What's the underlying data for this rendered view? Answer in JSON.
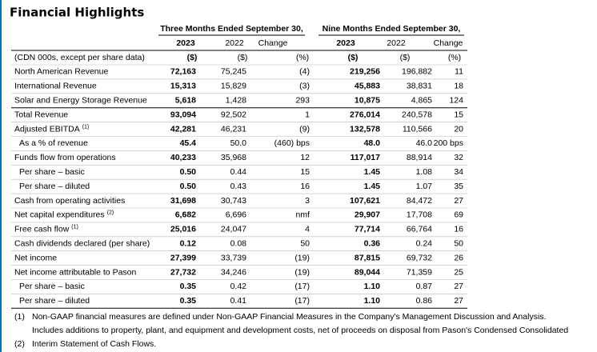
{
  "header": {
    "title": "Financial Highlights"
  },
  "table": {
    "groups": [
      {
        "label": "Three Months Ended September 30,",
        "columns": [
          "2023",
          "2022",
          "Change"
        ]
      },
      {
        "label": "Nine Months Ended September 30,",
        "columns": [
          "2023",
          "2022",
          "Change"
        ]
      }
    ],
    "units_row": {
      "label": "(CDN 000s, except per share data)",
      "cells": [
        "($)",
        "($)",
        "(%)",
        "($)",
        "($)",
        "(%)"
      ]
    },
    "rows": [
      {
        "label": "North American Revenue",
        "cells": [
          "72,163",
          "75,245",
          "(4)",
          "219,256",
          "196,882",
          "11"
        ]
      },
      {
        "label": "International Revenue",
        "cells": [
          "15,313",
          "15,829",
          "(3)",
          "45,883",
          "38,831",
          "18"
        ]
      },
      {
        "label": "Solar and Energy Storage Revenue",
        "cells": [
          "5,618",
          "1,428",
          "293",
          "10,875",
          "4,865",
          "124"
        ]
      },
      {
        "label": "Total Revenue",
        "cells": [
          "93,094",
          "92,502",
          "1",
          "276,014",
          "240,578",
          "15"
        ]
      },
      {
        "label": "Adjusted EBITDA",
        "note": "(1)",
        "cells": [
          "42,281",
          "46,231",
          "(9)",
          "132,578",
          "110,566",
          "20"
        ]
      },
      {
        "label": "As a % of revenue",
        "indent": true,
        "cells": [
          "45.4",
          "50.0",
          "(460) bps",
          "48.0",
          "46.0",
          "200 bps"
        ]
      },
      {
        "label": "Funds flow from operations",
        "cells": [
          "40,233",
          "35,968",
          "12",
          "117,017",
          "88,914",
          "32"
        ]
      },
      {
        "label": "Per share – basic",
        "indent": true,
        "cells": [
          "0.50",
          "0.44",
          "15",
          "1.45",
          "1.08",
          "34"
        ]
      },
      {
        "label": "Per share – diluted",
        "indent": true,
        "cells": [
          "0.50",
          "0.43",
          "16",
          "1.45",
          "1.07",
          "35"
        ]
      },
      {
        "label": "Cash from operating activities",
        "cells": [
          "31,698",
          "30,743",
          "3",
          "107,621",
          "84,472",
          "27"
        ]
      },
      {
        "label": "Net capital expenditures",
        "note": "(2)",
        "cells": [
          "6,682",
          "6,696",
          "nmf",
          "29,907",
          "17,708",
          "69"
        ]
      },
      {
        "label": "Free cash flow",
        "note": "(1)",
        "cells": [
          "25,016",
          "24,047",
          "4",
          "77,714",
          "66,764",
          "16"
        ]
      },
      {
        "label": "Cash dividends declared (per share)",
        "cells": [
          "0.12",
          "0.08",
          "50",
          "0.36",
          "0.24",
          "50"
        ]
      },
      {
        "label": "Net income",
        "cells": [
          "27,399",
          "33,739",
          "(19)",
          "87,815",
          "69,732",
          "26"
        ]
      },
      {
        "label": "Net income attributable to Pason",
        "cells": [
          "27,732",
          "34,246",
          "(19)",
          "89,044",
          "71,359",
          "25"
        ]
      },
      {
        "label": "Per share – basic",
        "indent": true,
        "cells": [
          "0.35",
          "0.42",
          "(17)",
          "1.10",
          "0.87",
          "27"
        ]
      },
      {
        "label": "Per share – diluted",
        "indent": true,
        "cells": [
          "0.35",
          "0.41",
          "(17)",
          "1.10",
          "0.86",
          "27"
        ]
      }
    ]
  },
  "footnotes": [
    {
      "marker": "(1)",
      "text": "Non-GAAP financial measures are defined under Non-GAAP Financial Measures in the Company's Management Discussion and Analysis."
    },
    {
      "text": "Includes additions to property, plant, and equipment and development costs, net of proceeds on disposal from Pason's Condensed Consolidated"
    },
    {
      "marker": "(2)",
      "text": "Interim Statement of Cash Flows."
    }
  ]
}
